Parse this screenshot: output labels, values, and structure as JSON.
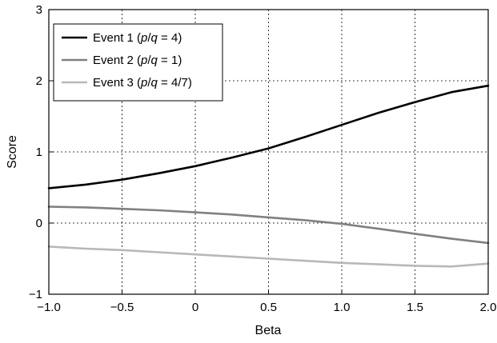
{
  "chart_data": {
    "type": "line",
    "xlabel": "Beta",
    "ylabel": "Score",
    "xlim": [
      -1.0,
      2.0
    ],
    "ylim": [
      -1,
      3
    ],
    "xticks": [
      -1.0,
      -0.5,
      0,
      0.5,
      1.0,
      1.5,
      2.0
    ],
    "xtick_labels": [
      "−1.0",
      "−0.5",
      "0",
      "0.5",
      "1.0",
      "1.5",
      "2.0"
    ],
    "yticks": [
      -1,
      0,
      1,
      2,
      3
    ],
    "ytick_labels": [
      "−1",
      "0",
      "1",
      "2",
      "3"
    ],
    "grid": true,
    "legend_position": "top-left",
    "x": [
      -1.0,
      -0.75,
      -0.5,
      -0.25,
      0.0,
      0.25,
      0.5,
      0.75,
      1.0,
      1.25,
      1.5,
      1.75,
      2.0
    ],
    "series": [
      {
        "name": "Event 1 (p/q = 4)",
        "legend": {
          "prefix": "Event 1 (",
          "p": "p",
          "slash": "/",
          "q": "q",
          "suffix": " = 4)"
        },
        "color": "#000000",
        "values": [
          0.49,
          0.54,
          0.61,
          0.7,
          0.8,
          0.92,
          1.05,
          1.21,
          1.38,
          1.55,
          1.7,
          1.84,
          1.93
        ]
      },
      {
        "name": "Event 2 (p/q = 1)",
        "legend": {
          "prefix": "Event 2 (",
          "p": "p",
          "slash": "/",
          "q": "q",
          "suffix": " = 1)"
        },
        "color": "#808080",
        "values": [
          0.23,
          0.22,
          0.2,
          0.18,
          0.15,
          0.12,
          0.08,
          0.04,
          -0.01,
          -0.08,
          -0.15,
          -0.22,
          -0.28
        ]
      },
      {
        "name": "Event 3 (p/q = 4/7)",
        "legend": {
          "prefix": "Event 3 (",
          "p": "p",
          "slash": "/",
          "q": "q",
          "suffix": " = 4/7)"
        },
        "color": "#b8b8b8",
        "values": [
          -0.33,
          -0.36,
          -0.38,
          -0.41,
          -0.44,
          -0.47,
          -0.5,
          -0.53,
          -0.56,
          -0.58,
          -0.6,
          -0.61,
          -0.57
        ]
      }
    ]
  }
}
